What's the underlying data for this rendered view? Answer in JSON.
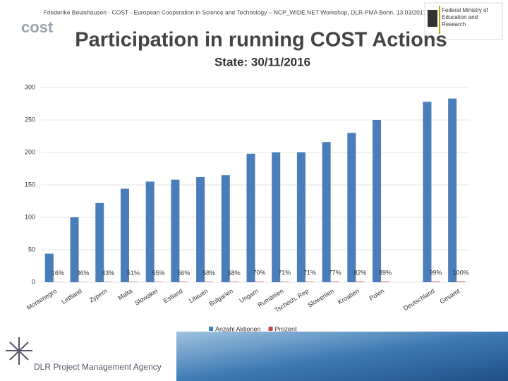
{
  "header": {
    "author_line": "Friederike Beulshausen · COST - European Cooperation in Science and Technology – NCP_WIDE.NET Workshop, DLR-PMA Bonn, 13.03/2017",
    "cost_logo": "cost",
    "ministry_logo": "Federal Ministry of Education and Research"
  },
  "footer": {
    "agency": "DLR Project Management Agency"
  },
  "chart_data": {
    "type": "bar",
    "title": "Participation in running COST Actions",
    "subtitle": "State: 30/11/2016",
    "categories": [
      "Montenegro",
      "Lettland",
      "Zypern",
      "Malta",
      "Slowakei",
      "Estland",
      "Litauen",
      "Bulgarien",
      "Ungarn",
      "Rumänien",
      "Tschech. Rep",
      "Slowenien",
      "Kroatien",
      "Polen",
      null,
      "Deutschland",
      "Gesamt"
    ],
    "series": [
      {
        "name": "Anzahl Aktionen",
        "color": "#4a7ebb",
        "values": [
          44,
          100,
          122,
          144,
          155,
          158,
          162,
          165,
          198,
          200,
          200,
          216,
          230,
          250,
          null,
          278,
          283
        ]
      },
      {
        "name": "Prozent",
        "color": "#be4b48",
        "values": [
          0.16,
          0.36,
          0.43,
          0.51,
          0.55,
          0.56,
          0.58,
          0.58,
          0.7,
          0.71,
          0.71,
          0.77,
          0.82,
          0.89,
          null,
          0.99,
          1.0
        ],
        "value_labels": [
          "16%",
          "36%",
          "43%",
          "51%",
          "55%",
          "56%",
          "58%",
          "58%",
          "70%",
          "71%",
          "71%",
          "77%",
          "82%",
          "89%",
          null,
          "99%",
          "100%"
        ]
      }
    ],
    "ylim": [
      0,
      300
    ],
    "yticks": [
      0,
      50,
      100,
      150,
      200,
      250,
      300
    ],
    "grid": true,
    "legend": "bottom"
  }
}
